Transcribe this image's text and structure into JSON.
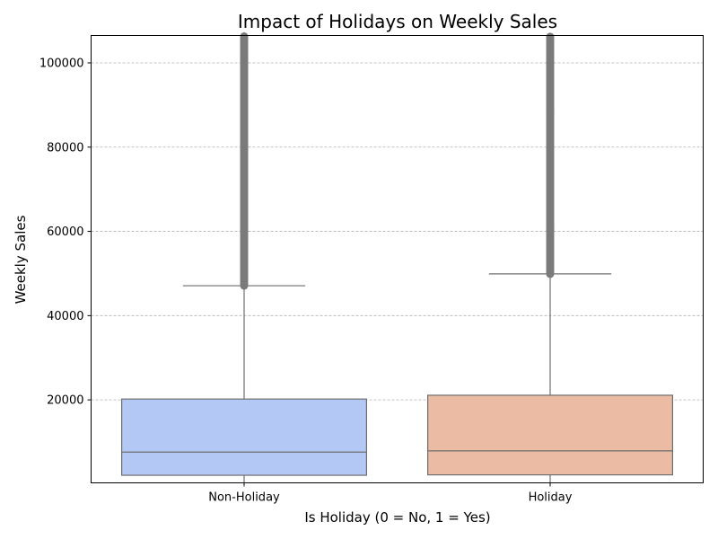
{
  "chart_data": {
    "type": "box",
    "title": "Impact of Holidays on Weekly Sales",
    "xlabel": "Is Holiday (0 = No, 1 = Yes)",
    "ylabel": "Weekly Sales",
    "ylim": [
      300,
      106500
    ],
    "yticks": [
      20000,
      40000,
      60000,
      80000,
      100000
    ],
    "grid": "y-dashed",
    "categories": [
      "Non-Holiday",
      "Holiday"
    ],
    "colors": [
      "#b3c8f5",
      "#ebbba3"
    ],
    "outlier_color": "#7a7a7a",
    "line_color": "#6e6e6e",
    "boxes": [
      {
        "q1": 2100,
        "median": 7600,
        "q3": 20200,
        "whisker_low": 300,
        "whisker_high": 47100,
        "outlier_range": [
          47100,
          106500
        ]
      },
      {
        "q1": 2200,
        "median": 7900,
        "q3": 21100,
        "whisker_low": 300,
        "whisker_high": 49900,
        "outlier_range": [
          49900,
          106500
        ]
      }
    ]
  }
}
